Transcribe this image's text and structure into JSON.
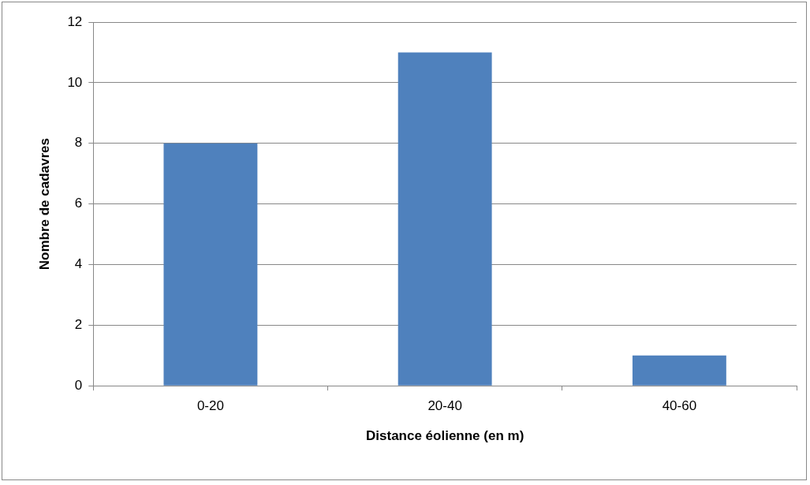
{
  "chart_data": {
    "type": "bar",
    "xlabel": "Distance éolienne (en m)",
    "ylabel": "Nombre de cadavres",
    "categories": [
      "0-20",
      "20-40",
      "40-60"
    ],
    "values": [
      8,
      11,
      1
    ],
    "color": "#4f81bd",
    "ylim": [
      0,
      12
    ],
    "yticks": [
      0,
      2,
      4,
      6,
      8,
      10,
      12
    ],
    "grid": "y",
    "legend": false
  }
}
